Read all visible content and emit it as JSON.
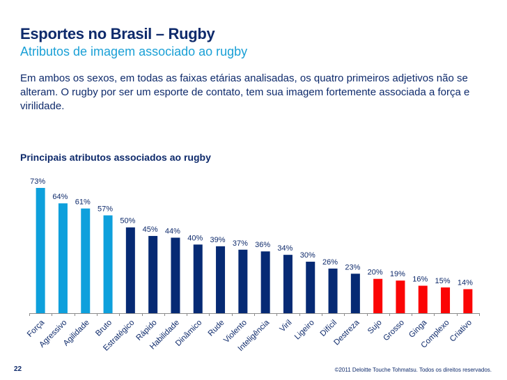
{
  "header": {
    "title": "Esportes no Brasil – Rugby",
    "subtitle": "Atributos de imagem associado ao rugby",
    "body": "Em ambos os sexos, em todas as faixas etárias analisadas, os quatro primeiros adjetivos não se alteram. O rugby por ser um esporte de contato, tem sua imagem fortemente associada a força e virilidade."
  },
  "footer": {
    "page_number": "22",
    "copyright": "©2011 Deloitte Touche Tohmatsu. Todos os direitos reservados."
  },
  "colors": {
    "light_blue": "#0ea0dc",
    "dark_blue": "#062a74",
    "red": "#fb0505",
    "label": "#0e2a6b",
    "axis": "#8a8a8a"
  },
  "chart_data": {
    "type": "bar",
    "title": "Principais atributos associados ao rugby",
    "xlabel": "",
    "ylabel": "",
    "ylim": [
      0,
      80
    ],
    "grid": false,
    "legend": "none",
    "categories": [
      "Força",
      "Agressivo",
      "Agilidade",
      "Bruto",
      "Estratégico",
      "Rápido",
      "Habilidade",
      "Dinâmico",
      "Rude",
      "Violento",
      "Inteligência",
      "Viril",
      "Ligeiro",
      "Difícil",
      "Destreza",
      "Sujo",
      "Grosso",
      "Ginga",
      "Complexo",
      "Criativo"
    ],
    "values": [
      73,
      64,
      61,
      57,
      50,
      45,
      44,
      40,
      39,
      37,
      36,
      34,
      30,
      26,
      23,
      20,
      19,
      16,
      15,
      14
    ],
    "value_labels": [
      "73%",
      "64%",
      "61%",
      "57%",
      "50%",
      "45%",
      "44%",
      "40%",
      "39%",
      "37%",
      "36%",
      "34%",
      "30%",
      "26%",
      "23%",
      "20%",
      "19%",
      "16%",
      "15%",
      "14%"
    ],
    "bar_groups": [
      "light_blue",
      "light_blue",
      "light_blue",
      "light_blue",
      "dark_blue",
      "dark_blue",
      "dark_blue",
      "dark_blue",
      "dark_blue",
      "dark_blue",
      "dark_blue",
      "dark_blue",
      "dark_blue",
      "dark_blue",
      "dark_blue",
      "red",
      "red",
      "red",
      "red",
      "red"
    ]
  }
}
